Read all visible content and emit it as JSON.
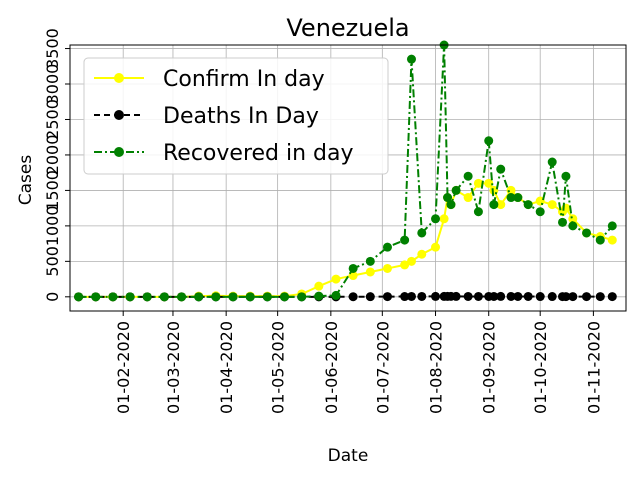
{
  "chart_data": {
    "type": "line",
    "title": "Venezuela",
    "xlabel": "Date",
    "ylabel": "Cases",
    "grid": true,
    "legend_position": "top-left",
    "x_tick_labels": [
      "01-02-2020",
      "01-03-2020",
      "01-04-2020",
      "01-05-2020",
      "01-06-2020",
      "01-07-2020",
      "01-08-2020",
      "01-09-2020",
      "01-10-2020",
      "01-11-2020"
    ],
    "y_tick_labels": [
      "0",
      "500",
      "1000",
      "1500",
      "2000",
      "2500",
      "3000",
      "3500"
    ],
    "ylim": [
      -200,
      3550
    ],
    "x_dates": [
      "2020-01-06",
      "2020-01-16",
      "2020-01-26",
      "2020-02-05",
      "2020-02-15",
      "2020-02-25",
      "2020-03-06",
      "2020-03-16",
      "2020-03-26",
      "2020-04-05",
      "2020-04-15",
      "2020-04-25",
      "2020-05-05",
      "2020-05-15",
      "2020-05-25",
      "2020-06-04",
      "2020-06-14",
      "2020-06-24",
      "2020-07-04",
      "2020-07-14",
      "2020-07-18",
      "2020-07-24",
      "2020-08-01",
      "2020-08-06",
      "2020-08-08",
      "2020-08-10",
      "2020-08-13",
      "2020-08-20",
      "2020-08-26",
      "2020-09-01",
      "2020-09-04",
      "2020-09-08",
      "2020-09-14",
      "2020-09-18",
      "2020-09-24",
      "2020-10-01",
      "2020-10-08",
      "2020-10-14",
      "2020-10-16",
      "2020-10-20",
      "2020-10-28",
      "2020-11-05",
      "2020-11-12"
    ],
    "series": [
      {
        "name": "Confirm In day",
        "color": "#ffff00",
        "style": "solid",
        "marker": "circle",
        "values": [
          0,
          0,
          0,
          0,
          0,
          0,
          0,
          10,
          15,
          10,
          10,
          10,
          10,
          40,
          150,
          250,
          300,
          350,
          400,
          450,
          500,
          600,
          700,
          1100,
          1400,
          1300,
          1500,
          1400,
          1600,
          1600,
          1500,
          1300,
          1500,
          1400,
          1300,
          1350,
          1300,
          1200,
          1250,
          1100,
          900,
          850,
          800
        ]
      },
      {
        "name": "Deaths In Day",
        "color": "#000000",
        "style": "dashed",
        "marker": "circle",
        "values": [
          0,
          0,
          0,
          0,
          0,
          0,
          0,
          0,
          0,
          0,
          0,
          0,
          0,
          0,
          0,
          0,
          1,
          2,
          3,
          4,
          5,
          5,
          6,
          6,
          6,
          7,
          6,
          5,
          5,
          5,
          5,
          6,
          5,
          5,
          5,
          4,
          4,
          3,
          3,
          3,
          3,
          3,
          3
        ]
      },
      {
        "name": "Recovered in day",
        "color": "#008000",
        "style": "dashdot",
        "marker": "circle",
        "values": [
          0,
          0,
          0,
          0,
          0,
          0,
          0,
          0,
          0,
          0,
          0,
          0,
          0,
          0,
          10,
          20,
          400,
          500,
          700,
          800,
          3350,
          900,
          1100,
          3550,
          1400,
          1300,
          1500,
          1700,
          1200,
          2200,
          1300,
          1800,
          1400,
          1400,
          1300,
          1200,
          1900,
          1050,
          1700,
          1000,
          900,
          800,
          1000
        ]
      }
    ]
  }
}
